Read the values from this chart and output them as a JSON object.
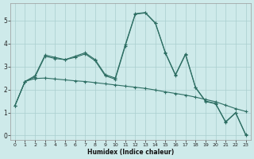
{
  "xlabel": "Humidex (Indice chaleur)",
  "background_color": "#ceeaea",
  "line_color": "#2d6e63",
  "grid_color": "#aacece",
  "xlim": [
    -0.5,
    23.5
  ],
  "ylim": [
    -0.2,
    5.75
  ],
  "xticks": [
    0,
    1,
    2,
    3,
    4,
    5,
    6,
    7,
    8,
    9,
    10,
    11,
    12,
    13,
    14,
    15,
    16,
    17,
    18,
    19,
    20,
    21,
    22,
    23
  ],
  "yticks": [
    0,
    1,
    2,
    3,
    4,
    5
  ],
  "line1_x": [
    0,
    1,
    2,
    3,
    4,
    5,
    6,
    7,
    8,
    9,
    10,
    11,
    12,
    13,
    14,
    15,
    16,
    17,
    18,
    19,
    20,
    21,
    22,
    23
  ],
  "line1_y": [
    1.3,
    2.35,
    2.6,
    3.5,
    3.4,
    3.3,
    3.45,
    3.6,
    3.3,
    2.65,
    2.5,
    3.95,
    5.3,
    5.35,
    4.9,
    3.6,
    2.65,
    3.55,
    2.1,
    1.5,
    1.4,
    0.6,
    1.0,
    0.05
  ],
  "line2_x": [
    0,
    1,
    2,
    3,
    4,
    5,
    6,
    7,
    8,
    9,
    10,
    11,
    12,
    13,
    14,
    15,
    16,
    17,
    18,
    19,
    20,
    21,
    22,
    23
  ],
  "line2_y": [
    1.3,
    2.35,
    2.55,
    3.45,
    3.35,
    3.3,
    3.4,
    3.55,
    3.25,
    2.6,
    2.45,
    3.9,
    5.28,
    5.33,
    4.88,
    3.58,
    2.62,
    3.52,
    2.08,
    1.48,
    1.38,
    0.58,
    0.98,
    0.03
  ],
  "line3_x": [
    0,
    1,
    2,
    3,
    4,
    5,
    6,
    7,
    8,
    9,
    10,
    11,
    12,
    13,
    14,
    15,
    16,
    17,
    18,
    19,
    20,
    21,
    22,
    23
  ],
  "line3_y": [
    1.3,
    2.35,
    2.48,
    2.5,
    2.46,
    2.42,
    2.38,
    2.35,
    2.3,
    2.25,
    2.2,
    2.15,
    2.1,
    2.05,
    1.98,
    1.9,
    1.83,
    1.76,
    1.67,
    1.57,
    1.47,
    1.32,
    1.17,
    1.05
  ]
}
